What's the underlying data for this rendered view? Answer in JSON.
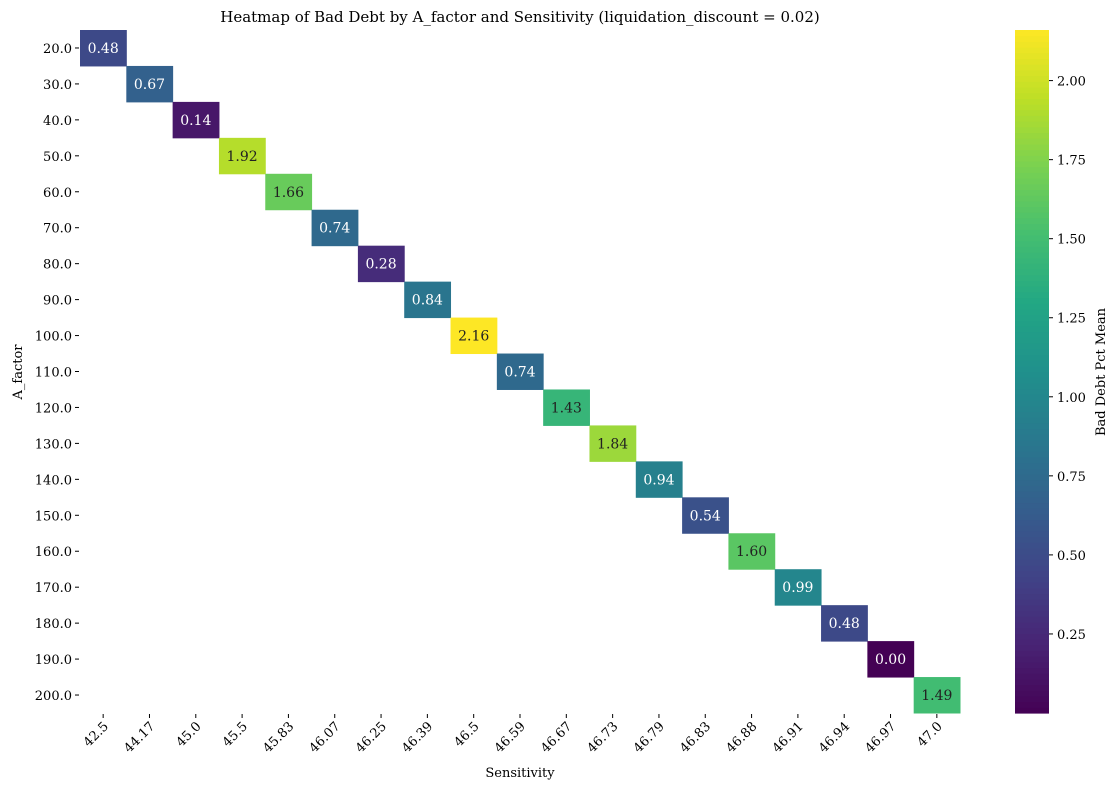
{
  "chart_data": {
    "type": "heatmap",
    "title": "Heatmap of Bad Debt by A_factor and Sensitivity (liquidation_discount = 0.02)",
    "xlabel": "Sensitivity",
    "ylabel": "A_factor",
    "x_categories": [
      "42.5",
      "44.17",
      "45.0",
      "45.5",
      "45.83",
      "46.07",
      "46.25",
      "46.39",
      "46.5",
      "46.59",
      "46.67",
      "46.73",
      "46.79",
      "46.83",
      "46.88",
      "46.91",
      "46.94",
      "46.97",
      "47.0"
    ],
    "y_categories": [
      "20.0",
      "30.0",
      "40.0",
      "50.0",
      "60.0",
      "70.0",
      "80.0",
      "90.0",
      "100.0",
      "110.0",
      "120.0",
      "130.0",
      "140.0",
      "150.0",
      "160.0",
      "170.0",
      "180.0",
      "190.0",
      "200.0"
    ],
    "cells": [
      {
        "x": 0,
        "y": 0,
        "value": 0.48,
        "label": "0.48"
      },
      {
        "x": 1,
        "y": 1,
        "value": 0.67,
        "label": "0.67"
      },
      {
        "x": 2,
        "y": 2,
        "value": 0.14,
        "label": "0.14"
      },
      {
        "x": 3,
        "y": 3,
        "value": 1.92,
        "label": "1.92"
      },
      {
        "x": 4,
        "y": 4,
        "value": 1.66,
        "label": "1.66"
      },
      {
        "x": 5,
        "y": 5,
        "value": 0.74,
        "label": "0.74"
      },
      {
        "x": 6,
        "y": 6,
        "value": 0.28,
        "label": "0.28"
      },
      {
        "x": 7,
        "y": 7,
        "value": 0.84,
        "label": "0.84"
      },
      {
        "x": 8,
        "y": 8,
        "value": 2.16,
        "label": "2.16"
      },
      {
        "x": 9,
        "y": 9,
        "value": 0.74,
        "label": "0.74"
      },
      {
        "x": 10,
        "y": 10,
        "value": 1.43,
        "label": "1.43"
      },
      {
        "x": 11,
        "y": 11,
        "value": 1.84,
        "label": "1.84"
      },
      {
        "x": 12,
        "y": 12,
        "value": 0.94,
        "label": "0.94"
      },
      {
        "x": 13,
        "y": 13,
        "value": 0.54,
        "label": "0.54"
      },
      {
        "x": 14,
        "y": 14,
        "value": 1.6,
        "label": "1.60"
      },
      {
        "x": 15,
        "y": 15,
        "value": 0.99,
        "label": "0.99"
      },
      {
        "x": 16,
        "y": 16,
        "value": 0.48,
        "label": "0.48"
      },
      {
        "x": 17,
        "y": 17,
        "value": 0.0,
        "label": "0.00"
      },
      {
        "x": 18,
        "y": 18,
        "value": 1.49,
        "label": "1.49"
      }
    ],
    "colorbar": {
      "label": "Bad Debt Pct Mean",
      "range": [
        0.0,
        2.16
      ],
      "ticks": [
        "0.25",
        "0.50",
        "0.75",
        "1.00",
        "1.25",
        "1.50",
        "1.75",
        "2.00"
      ],
      "colormap": "viridis"
    },
    "grid": false
  }
}
